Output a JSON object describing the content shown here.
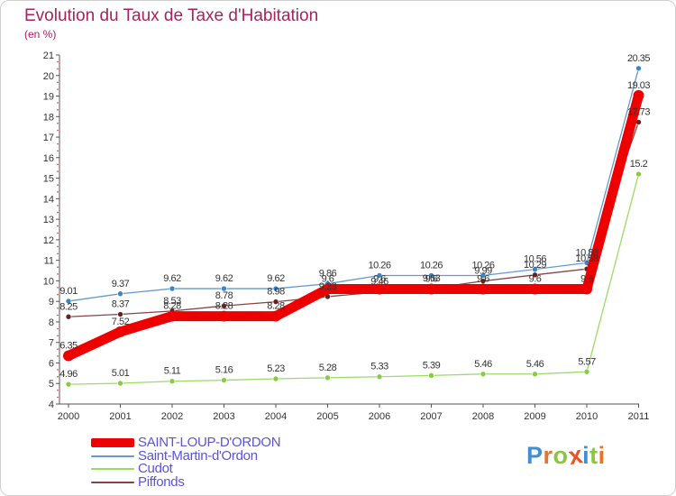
{
  "title": "Evolution du Taux de Taxe d'Habitation",
  "subtitle": "(en %)",
  "logo": {
    "text": "Proxiti",
    "letter_colors": [
      "#3f8fd2",
      "#e8742a",
      "#8cc63f",
      "#e8542a",
      "#3f8fd2",
      "#8cc63f",
      "#e8742a"
    ]
  },
  "chart_data": {
    "type": "line",
    "categories": [
      "2000",
      "2001",
      "2002",
      "2003",
      "2004",
      "2005",
      "2006",
      "2007",
      "2008",
      "2009",
      "2010",
      "2011"
    ],
    "ylim": [
      4,
      21
    ],
    "yticks": [
      "4",
      "5",
      "6",
      "7",
      "8",
      "9",
      "10",
      "11",
      "12",
      "13",
      "14",
      "15",
      "16",
      "17",
      "18",
      "19",
      "20",
      "21"
    ],
    "title": "Evolution du Taux de Taxe d'Habitation",
    "ylabel": "(en %)",
    "grid": false,
    "series": [
      {
        "name": "Saint-Martin-d'Ordon",
        "color": "#6699cc",
        "marker": "#3a86c8",
        "values": [
          9.01,
          9.37,
          9.62,
          9.62,
          9.62,
          9.86,
          10.26,
          10.26,
          10.26,
          10.56,
          10.88,
          20.35
        ],
        "labels": [
          "9.01",
          "9.37",
          "9.62",
          "9.62",
          "9.62",
          "9.86",
          "10.26",
          "10.26",
          "10.26",
          "10.56",
          "10.88",
          "20.35"
        ]
      },
      {
        "name": "Cudot",
        "color": "#99dd66",
        "marker": "#88cc44",
        "values": [
          4.96,
          5.01,
          5.11,
          5.16,
          5.23,
          5.28,
          5.33,
          5.39,
          5.46,
          5.46,
          5.57,
          15.2
        ],
        "labels": [
          "4.96",
          "5.01",
          "5.11",
          "5.16",
          "5.23",
          "5.28",
          "5.33",
          "5.39",
          "5.46",
          "5.46",
          "5.57",
          "15.2"
        ]
      },
      {
        "name": "Piffonds",
        "color": "#884444",
        "marker": "#662222",
        "values": [
          8.25,
          8.37,
          8.53,
          8.78,
          8.98,
          9.23,
          9.46,
          9.63,
          9.99,
          10.29,
          10.58,
          17.73
        ],
        "labels": [
          "8.25",
          "8.37",
          "8.53",
          "8.78",
          "8.98",
          "9.23",
          "9.46",
          "9.63",
          "9.99",
          "10.29",
          "10.58",
          "17.73"
        ]
      },
      {
        "name": "SAINT-LOUP-D'ORDON",
        "color": "#ee0000",
        "marker": "#ee0000",
        "bold": true,
        "values": [
          6.35,
          7.52,
          8.28,
          8.28,
          8.28,
          9.6,
          9.6,
          9.6,
          9.6,
          9.6,
          9.6,
          19.03
        ],
        "labels": [
          "6.35",
          "7.52",
          "8.28",
          "8.28",
          "8.28",
          "9.6",
          "9.6",
          "9.6",
          "9.6",
          "9.6",
          "9.6",
          "19.03"
        ]
      }
    ],
    "legend": [
      {
        "name": "SAINT-LOUP-D'ORDON",
        "color": "#ee0000",
        "bold": true
      },
      {
        "name": "Saint-Martin-d'Ordon",
        "color": "#6699cc"
      },
      {
        "name": "Cudot",
        "color": "#99dd66"
      },
      {
        "name": "Piffonds",
        "color": "#884444"
      }
    ]
  }
}
